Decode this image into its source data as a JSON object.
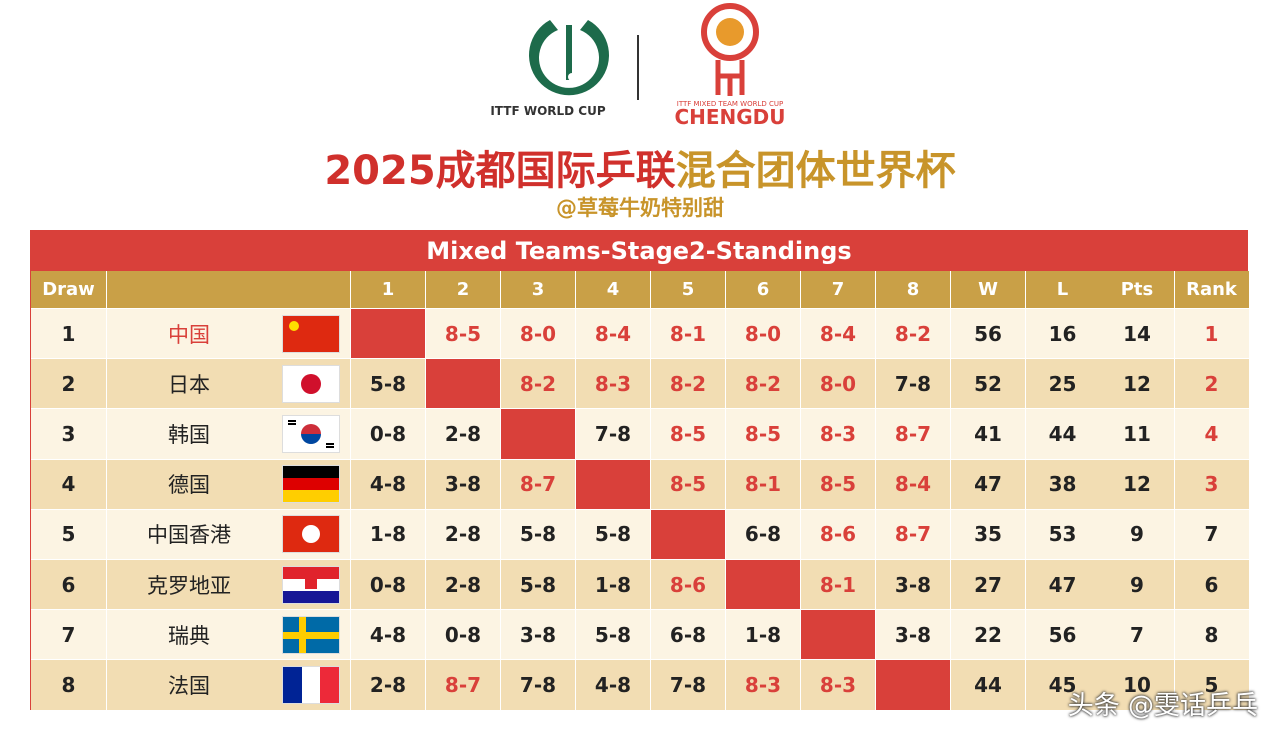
{
  "header": {
    "logo_left": "ITTF WORLD CUP",
    "logo_right_small": "ITTF MIXED TEAM WORLD CUP",
    "logo_right": "CHENGDU",
    "title_red": "2025成都国际乒联",
    "title_gold": "混合团体世界杯",
    "subtitle": "@草莓牛奶特别甜"
  },
  "table": {
    "title": "Mixed Teams-Stage2-Standings",
    "columns": {
      "draw": "Draw",
      "opponents": [
        1,
        2,
        3,
        4,
        5,
        6,
        7,
        8
      ],
      "stats": [
        "W",
        "L",
        "Pts",
        "Rank"
      ]
    },
    "rows": [
      {
        "draw": 1,
        "team": "中国",
        "results": [
          null,
          "8-5",
          "8-0",
          "8-4",
          "8-1",
          "8-0",
          "8-4",
          "8-2"
        ],
        "stats": [
          56,
          16,
          14,
          1
        ]
      },
      {
        "draw": 2,
        "team": "日本",
        "results": [
          "5-8",
          null,
          "8-2",
          "8-3",
          "8-2",
          "8-2",
          "8-0",
          "7-8"
        ],
        "stats": [
          52,
          25,
          12,
          2
        ]
      },
      {
        "draw": 3,
        "team": "韩国",
        "results": [
          "0-8",
          "2-8",
          null,
          "7-8",
          "8-5",
          "8-5",
          "8-3",
          "8-7"
        ],
        "stats": [
          41,
          44,
          11,
          4
        ]
      },
      {
        "draw": 4,
        "team": "德国",
        "results": [
          "4-8",
          "3-8",
          "8-7",
          null,
          "8-5",
          "8-1",
          "8-5",
          "8-4"
        ],
        "stats": [
          47,
          38,
          12,
          3
        ]
      },
      {
        "draw": 5,
        "team": "中国香港",
        "results": [
          "1-8",
          "2-8",
          "5-8",
          "5-8",
          null,
          "6-8",
          "8-6",
          "8-7"
        ],
        "stats": [
          35,
          53,
          9,
          7
        ]
      },
      {
        "draw": 6,
        "team": "克罗地亚",
        "results": [
          "0-8",
          "2-8",
          "5-8",
          "1-8",
          "8-6",
          null,
          "8-1",
          "3-8"
        ],
        "stats": [
          27,
          47,
          9,
          6
        ]
      },
      {
        "draw": 7,
        "team": "瑞典",
        "results": [
          "4-8",
          "0-8",
          "3-8",
          "5-8",
          "6-8",
          "1-8",
          null,
          "3-8"
        ],
        "stats": [
          22,
          56,
          7,
          8
        ]
      },
      {
        "draw": 8,
        "team": "法国",
        "results": [
          "2-8",
          "8-7",
          "7-8",
          "4-8",
          "7-8",
          "8-3",
          "8-3",
          null
        ],
        "stats": [
          44,
          45,
          10,
          5
        ]
      }
    ]
  },
  "watermark": "头条 @雯话乒乓"
}
